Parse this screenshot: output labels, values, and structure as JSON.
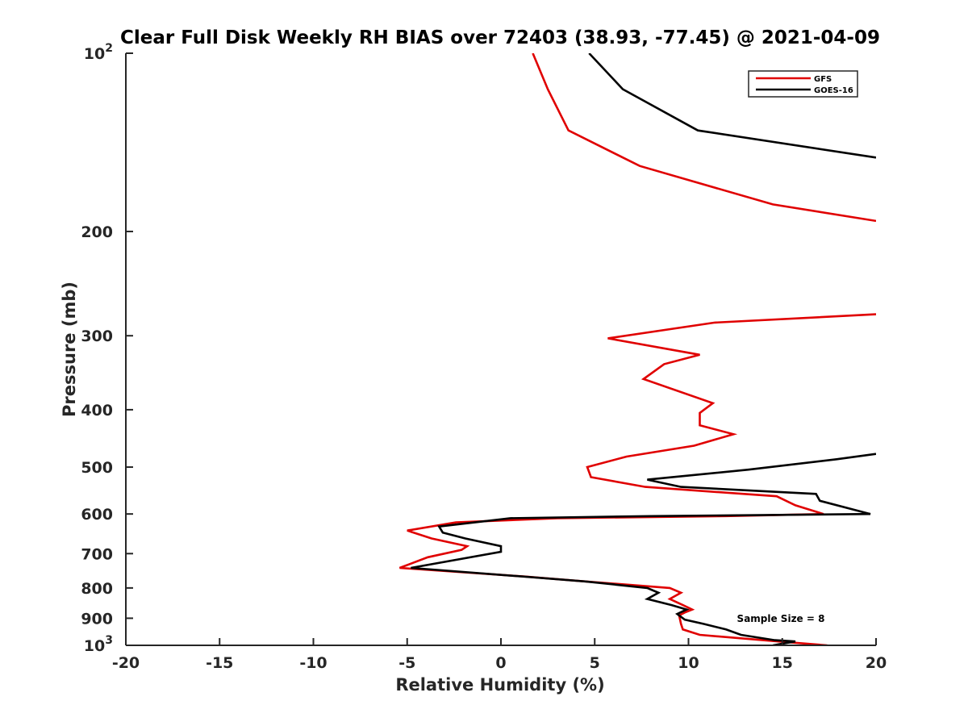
{
  "chart_data": {
    "type": "line",
    "title": "Clear Full Disk Weekly RH BIAS over 72403 (38.93, -77.45) @ 2021-04-09",
    "xlabel": "Relative Humidity (%)",
    "ylabel": "Pressure (mb)",
    "xlim": [
      -20,
      20
    ],
    "ylim": [
      100,
      1000
    ],
    "y_scale": "log",
    "y_reversed": true,
    "grid": false,
    "legend_position": "top-right",
    "x_ticks": [
      "-20",
      "-15",
      "-10",
      "-5",
      "0",
      "5",
      "10",
      "15",
      "20"
    ],
    "y_ticks": [
      {
        "value": 100,
        "base": "10",
        "exp": "2"
      },
      {
        "value": 200,
        "label": "200"
      },
      {
        "value": 300,
        "label": "300"
      },
      {
        "value": 400,
        "label": "400"
      },
      {
        "value": 500,
        "label": "500"
      },
      {
        "value": 600,
        "label": "600"
      },
      {
        "value": 700,
        "label": "700"
      },
      {
        "value": 800,
        "label": "800"
      },
      {
        "value": 900,
        "label": "900"
      },
      {
        "value": 1000,
        "base": "10",
        "exp": "3"
      }
    ],
    "annotation": "Sample Size = 8",
    "series": [
      {
        "name": "GFS",
        "color": "#e00000",
        "segments": [
          [
            [
              1.7,
              100
            ],
            [
              2.5,
              115
            ],
            [
              3.6,
              135
            ],
            [
              7.4,
              155
            ],
            [
              14.5,
              180
            ],
            [
              20,
              192
            ]
          ],
          [
            [
              20,
              276
            ],
            [
              11.4,
              285
            ],
            [
              5.7,
              303
            ],
            [
              10.6,
              323
            ],
            [
              8.7,
              335
            ],
            [
              7.6,
              355
            ],
            [
              11.3,
              390
            ],
            [
              10.6,
              405
            ],
            [
              10.6,
              425
            ],
            [
              12.4,
              440
            ],
            [
              10.3,
              460
            ],
            [
              6.7,
              480
            ],
            [
              4.6,
              500
            ],
            [
              4.8,
              520
            ],
            [
              7.7,
              540
            ],
            [
              14.7,
              560
            ],
            [
              15.7,
              580
            ],
            [
              17.2,
              600
            ],
            [
              12,
              605
            ],
            [
              3,
              610
            ],
            [
              -2.4,
              620
            ],
            [
              -5,
              640
            ],
            [
              -3.7,
              660
            ],
            [
              -1.8,
              680
            ],
            [
              -2.1,
              690
            ],
            [
              -3.9,
              710
            ],
            [
              -5.4,
              740
            ],
            [
              1.2,
              765
            ],
            [
              4.5,
              780
            ],
            [
              9,
              800
            ],
            [
              9.6,
              815
            ],
            [
              9,
              835
            ],
            [
              9.7,
              855
            ],
            [
              10.2,
              870
            ],
            [
              9.8,
              880
            ],
            [
              9.5,
              890
            ],
            [
              9.6,
              920
            ],
            [
              9.7,
              940
            ],
            [
              10.6,
              960
            ],
            [
              14.8,
              985
            ],
            [
              17.4,
              1000
            ]
          ]
        ]
      },
      {
        "name": "GOES-16",
        "color": "#000000",
        "segments": [
          [
            [
              4.7,
              100
            ],
            [
              6.5,
              115
            ],
            [
              10.5,
              135
            ],
            [
              20,
              150
            ]
          ],
          [
            [
              20,
              475
            ],
            [
              17.9,
              485
            ],
            [
              13.2,
              505
            ],
            [
              7.8,
              525
            ],
            [
              9.6,
              540
            ],
            [
              16.8,
              555
            ],
            [
              17,
              570
            ],
            [
              19.7,
              600
            ],
            [
              8,
              605
            ],
            [
              0.5,
              610
            ],
            [
              -3.3,
              630
            ],
            [
              -3.1,
              645
            ],
            [
              -1.9,
              660
            ],
            [
              0,
              680
            ],
            [
              0,
              695
            ],
            [
              -4.8,
              740
            ],
            [
              1.1,
              765
            ],
            [
              4.5,
              780
            ],
            [
              7.8,
              800
            ],
            [
              8.4,
              815
            ],
            [
              7.8,
              835
            ],
            [
              9.1,
              855
            ],
            [
              9.9,
              870
            ],
            [
              9.4,
              885
            ],
            [
              9.8,
              905
            ],
            [
              10.8,
              920
            ],
            [
              12,
              940
            ],
            [
              12.8,
              960
            ],
            [
              14.6,
              980
            ],
            [
              15.7,
              985
            ],
            [
              14.5,
              1000
            ]
          ]
        ]
      }
    ]
  }
}
